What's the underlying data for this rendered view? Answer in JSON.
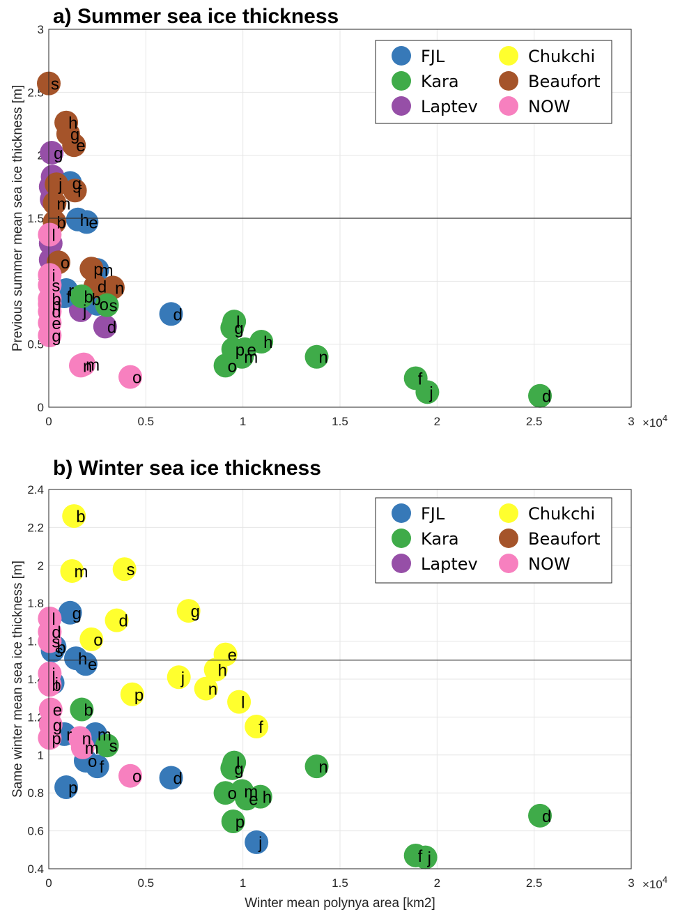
{
  "chart_data": [
    {
      "type": "scatter",
      "title": "a) Summer sea ice thickness",
      "xlabel": "",
      "ylabel": "Previous summer mean sea ice thickness [m]",
      "xlim": [
        0,
        30000
      ],
      "ylim": [
        0,
        3
      ],
      "xticks": [
        0,
        5000,
        10000,
        15000,
        20000,
        25000,
        30000
      ],
      "xtick_labels": [
        "0",
        "0.5",
        "1",
        "1.5",
        "2",
        "2.5",
        "3"
      ],
      "x_exponent_label": "×10",
      "x_exponent_power": "4",
      "yticks": [
        0,
        0.5,
        1,
        1.5,
        2,
        2.5,
        3
      ],
      "ytick_labels": [
        "0",
        "0.5",
        "1",
        "1.5",
        "2",
        "2.5",
        "3"
      ],
      "reference_line_y": 1.5,
      "grid": true,
      "legend_position": "top-right",
      "legend": [
        {
          "name": "FJL",
          "color": "#3779b8"
        },
        {
          "name": "Chukchi",
          "color": "#ffff2e"
        },
        {
          "name": "Kara",
          "color": "#3fab49"
        },
        {
          "name": "Beaufort",
          "color": "#a5542a"
        },
        {
          "name": "Laptev",
          "color": "#964fa7"
        },
        {
          "name": "NOW",
          "color": "#f780bf"
        }
      ],
      "series": [
        {
          "name": "Laptev",
          "color": "#964fa7",
          "points": [
            {
              "x": 150,
              "y": 2.02,
              "label": "g"
            },
            {
              "x": 200,
              "y": 1.83,
              "label": ""
            },
            {
              "x": 100,
              "y": 1.75,
              "label": ""
            },
            {
              "x": 150,
              "y": 1.65,
              "label": ""
            },
            {
              "x": 100,
              "y": 1.3,
              "label": ""
            },
            {
              "x": 100,
              "y": 1.17,
              "label": ""
            },
            {
              "x": 1650,
              "y": 0.77,
              "label": "j"
            },
            {
              "x": 2900,
              "y": 0.64,
              "label": "d"
            }
          ]
        },
        {
          "name": "FJL",
          "color": "#3779b8",
          "points": [
            {
              "x": 1100,
              "y": 1.78,
              "label": "g"
            },
            {
              "x": 1500,
              "y": 1.49,
              "label": "h"
            },
            {
              "x": 1950,
              "y": 1.47,
              "label": "e"
            },
            {
              "x": 2500,
              "y": 1.09,
              "label": "m"
            },
            {
              "x": 900,
              "y": 0.93,
              "label": "r"
            },
            {
              "x": 800,
              "y": 0.88,
              "label": "f"
            },
            {
              "x": 2100,
              "y": 0.86,
              "label": "b"
            },
            {
              "x": 2500,
              "y": 0.82,
              "label": "o"
            },
            {
              "x": 6300,
              "y": 0.74,
              "label": "d"
            }
          ]
        },
        {
          "name": "Beaufort",
          "color": "#a5542a",
          "points": [
            {
              "x": 0,
              "y": 2.57,
              "label": "s"
            },
            {
              "x": 900,
              "y": 2.26,
              "label": "h"
            },
            {
              "x": 1000,
              "y": 2.17,
              "label": "g"
            },
            {
              "x": 1300,
              "y": 2.08,
              "label": "e"
            },
            {
              "x": 400,
              "y": 1.77,
              "label": "j"
            },
            {
              "x": 1350,
              "y": 1.72,
              "label": "f"
            },
            {
              "x": 300,
              "y": 1.62,
              "label": "m"
            },
            {
              "x": 300,
              "y": 1.47,
              "label": "b"
            },
            {
              "x": 500,
              "y": 1.15,
              "label": "o"
            },
            {
              "x": 2200,
              "y": 1.1,
              "label": "p"
            },
            {
              "x": 2400,
              "y": 0.96,
              "label": "d"
            },
            {
              "x": 3300,
              "y": 0.95,
              "label": "n"
            }
          ]
        },
        {
          "name": "Kara",
          "color": "#3fab49",
          "points": [
            {
              "x": 1700,
              "y": 0.88,
              "label": "b"
            },
            {
              "x": 3000,
              "y": 0.81,
              "label": "s"
            },
            {
              "x": 9550,
              "y": 0.68,
              "label": "l"
            },
            {
              "x": 9450,
              "y": 0.63,
              "label": "g"
            },
            {
              "x": 10950,
              "y": 0.52,
              "label": "h"
            },
            {
              "x": 9500,
              "y": 0.46,
              "label": "p"
            },
            {
              "x": 10100,
              "y": 0.46,
              "label": "e"
            },
            {
              "x": 9950,
              "y": 0.4,
              "label": "m"
            },
            {
              "x": 13800,
              "y": 0.4,
              "label": "n"
            },
            {
              "x": 9100,
              "y": 0.33,
              "label": "o"
            },
            {
              "x": 18900,
              "y": 0.23,
              "label": "f"
            },
            {
              "x": 19500,
              "y": 0.12,
              "label": "j"
            },
            {
              "x": 25300,
              "y": 0.09,
              "label": "d"
            }
          ]
        },
        {
          "name": "NOW",
          "color": "#f780bf",
          "points": [
            {
              "x": 50,
              "y": 1.37,
              "label": "l"
            },
            {
              "x": 50,
              "y": 1.05,
              "label": "i"
            },
            {
              "x": 50,
              "y": 0.97,
              "label": "s"
            },
            {
              "x": 50,
              "y": 0.86,
              "label": "b"
            },
            {
              "x": 50,
              "y": 0.82,
              "label": "p"
            },
            {
              "x": 50,
              "y": 0.76,
              "label": "d"
            },
            {
              "x": 50,
              "y": 0.67,
              "label": "e"
            },
            {
              "x": 50,
              "y": 0.57,
              "label": "g"
            },
            {
              "x": 1650,
              "y": 0.33,
              "label": "n"
            },
            {
              "x": 1800,
              "y": 0.34,
              "label": "m"
            },
            {
              "x": 4200,
              "y": 0.24,
              "label": "o"
            }
          ]
        }
      ]
    },
    {
      "type": "scatter",
      "title": "b) Winter sea ice thickness",
      "xlabel": "Winter mean polynya area [km2]",
      "ylabel": "Same winter mean sea ice thickness [m]",
      "xlim": [
        0,
        30000
      ],
      "ylim": [
        0.4,
        2.4
      ],
      "xticks": [
        0,
        5000,
        10000,
        15000,
        20000,
        25000,
        30000
      ],
      "xtick_labels": [
        "0",
        "0.5",
        "1",
        "1.5",
        "2",
        "2.5",
        "3"
      ],
      "x_exponent_label": "×10",
      "x_exponent_power": "4",
      "yticks": [
        0.4,
        0.6,
        0.8,
        1.0,
        1.2,
        1.4,
        1.6,
        1.8,
        2.0,
        2.2,
        2.4
      ],
      "ytick_labels": [
        "0.4",
        "0.6",
        "0.8",
        "1",
        "1.2",
        "1.4",
        "1.6",
        "1.8",
        "2",
        "2.2",
        "2.4"
      ],
      "reference_line_y": 1.5,
      "grid": true,
      "legend_position": "top-right",
      "legend": [
        {
          "name": "FJL",
          "color": "#3779b8"
        },
        {
          "name": "Chukchi",
          "color": "#ffff2e"
        },
        {
          "name": "Kara",
          "color": "#3fab49"
        },
        {
          "name": "Beaufort",
          "color": "#a5542a"
        },
        {
          "name": "Laptev",
          "color": "#964fa7"
        },
        {
          "name": "NOW",
          "color": "#f780bf"
        }
      ],
      "series": [
        {
          "name": "FJL",
          "color": "#3779b8",
          "points": [
            {
              "x": 1100,
              "y": 1.75,
              "label": "g"
            },
            {
              "x": 300,
              "y": 1.57,
              "label": "b"
            },
            {
              "x": 200,
              "y": 1.55,
              "label": "s"
            },
            {
              "x": 1400,
              "y": 1.51,
              "label": "h"
            },
            {
              "x": 1900,
              "y": 1.48,
              "label": "e"
            },
            {
              "x": 200,
              "y": 1.38,
              "label": "i"
            },
            {
              "x": 800,
              "y": 1.11,
              "label": "r"
            },
            {
              "x": 2400,
              "y": 1.11,
              "label": "m"
            },
            {
              "x": 1900,
              "y": 0.97,
              "label": "o"
            },
            {
              "x": 2500,
              "y": 0.94,
              "label": "f"
            },
            {
              "x": 900,
              "y": 0.83,
              "label": "p"
            },
            {
              "x": 6300,
              "y": 0.88,
              "label": "d"
            },
            {
              "x": 10700,
              "y": 0.54,
              "label": "j"
            }
          ]
        },
        {
          "name": "Chukchi",
          "color": "#ffff2e",
          "points": [
            {
              "x": 1300,
              "y": 2.26,
              "label": "b"
            },
            {
              "x": 1200,
              "y": 1.97,
              "label": "m"
            },
            {
              "x": 3900,
              "y": 1.98,
              "label": "s"
            },
            {
              "x": 7200,
              "y": 1.76,
              "label": "g"
            },
            {
              "x": 3500,
              "y": 1.71,
              "label": "d"
            },
            {
              "x": 2200,
              "y": 1.61,
              "label": "o"
            },
            {
              "x": 9100,
              "y": 1.53,
              "label": "e"
            },
            {
              "x": 8600,
              "y": 1.45,
              "label": "h"
            },
            {
              "x": 6700,
              "y": 1.41,
              "label": "j"
            },
            {
              "x": 8100,
              "y": 1.35,
              "label": "n"
            },
            {
              "x": 4300,
              "y": 1.32,
              "label": "p"
            },
            {
              "x": 9800,
              "y": 1.28,
              "label": "l"
            },
            {
              "x": 10700,
              "y": 1.15,
              "label": "f"
            }
          ]
        },
        {
          "name": "Kara",
          "color": "#3fab49",
          "points": [
            {
              "x": 1700,
              "y": 1.24,
              "label": "b"
            },
            {
              "x": 3000,
              "y": 1.05,
              "label": "s"
            },
            {
              "x": 9550,
              "y": 0.96,
              "label": "l"
            },
            {
              "x": 9450,
              "y": 0.93,
              "label": "g"
            },
            {
              "x": 13800,
              "y": 0.94,
              "label": "n"
            },
            {
              "x": 9100,
              "y": 0.8,
              "label": "o"
            },
            {
              "x": 9950,
              "y": 0.81,
              "label": "m"
            },
            {
              "x": 10200,
              "y": 0.77,
              "label": "e"
            },
            {
              "x": 10900,
              "y": 0.78,
              "label": "h"
            },
            {
              "x": 9500,
              "y": 0.65,
              "label": "p"
            },
            {
              "x": 25300,
              "y": 0.68,
              "label": "d"
            },
            {
              "x": 18900,
              "y": 0.47,
              "label": "f"
            },
            {
              "x": 19400,
              "y": 0.46,
              "label": "j"
            }
          ]
        },
        {
          "name": "NOW",
          "color": "#f780bf",
          "points": [
            {
              "x": 50,
              "y": 1.72,
              "label": "l"
            },
            {
              "x": 50,
              "y": 1.65,
              "label": "d"
            },
            {
              "x": 50,
              "y": 1.6,
              "label": "s"
            },
            {
              "x": 50,
              "y": 1.43,
              "label": "i"
            },
            {
              "x": 50,
              "y": 1.37,
              "label": "b"
            },
            {
              "x": 100,
              "y": 1.24,
              "label": "e"
            },
            {
              "x": 100,
              "y": 1.16,
              "label": "g"
            },
            {
              "x": 50,
              "y": 1.09,
              "label": "p"
            },
            {
              "x": 1600,
              "y": 1.09,
              "label": "n"
            },
            {
              "x": 1750,
              "y": 1.04,
              "label": "m"
            },
            {
              "x": 4200,
              "y": 0.89,
              "label": "o"
            }
          ]
        }
      ]
    }
  ]
}
